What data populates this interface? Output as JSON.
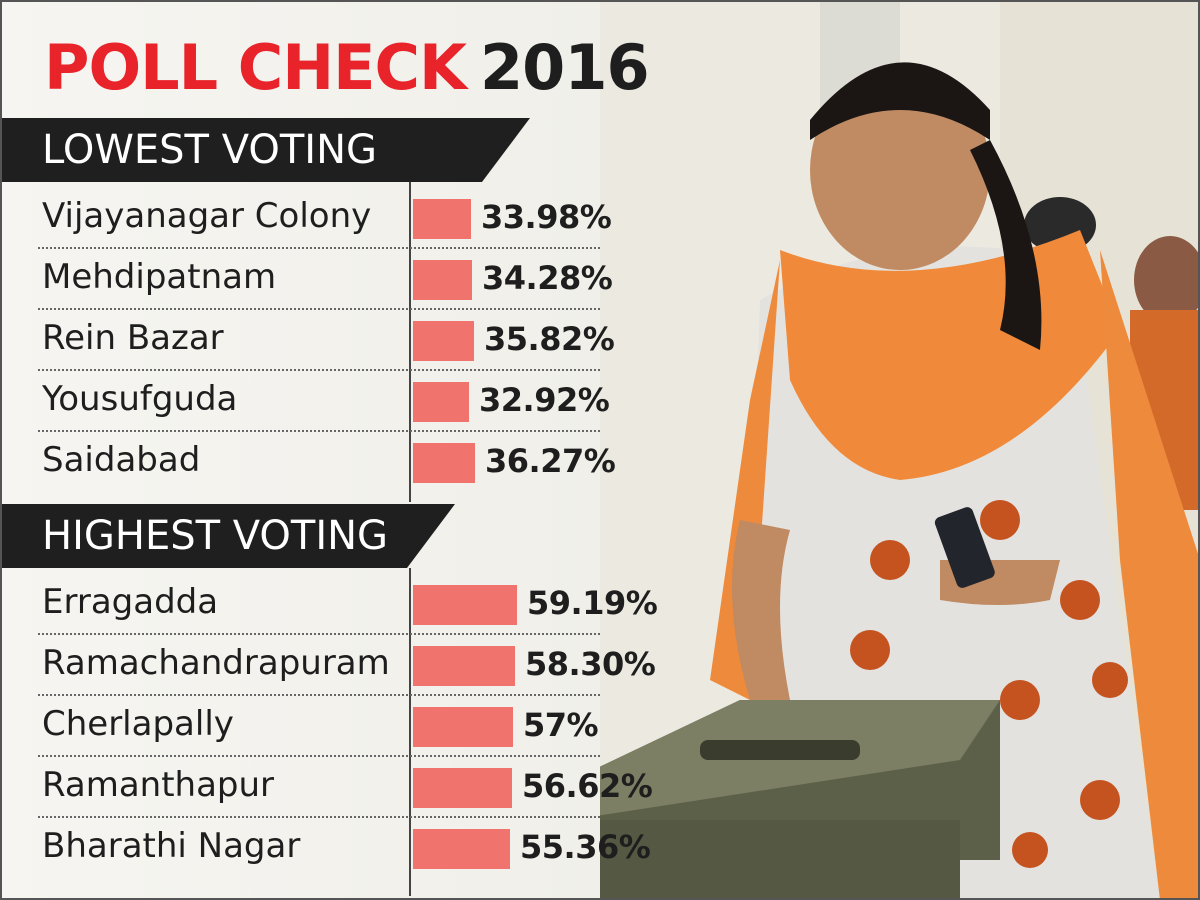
{
  "header": {
    "title_red": "POLL CHECK",
    "title_dark": "2016"
  },
  "chart_data": {
    "type": "bar",
    "groups": [
      {
        "name": "LOWEST VOTING",
        "categories": [
          "Vijayanagar Colony",
          "Mehdipatnam",
          "Rein Bazar",
          "Yousufguda",
          "Saidabad"
        ],
        "values": [
          33.98,
          34.28,
          35.82,
          32.92,
          36.27
        ],
        "labels": [
          "33.98%",
          "34.28%",
          "35.82%",
          "32.92%",
          "36.27%"
        ]
      },
      {
        "name": "HIGHEST VOTING",
        "categories": [
          "Erragadda",
          "Ramachandrapuram",
          "Cherlapally",
          "Ramanthapur",
          "Bharathi Nagar"
        ],
        "values": [
          59.19,
          58.3,
          57,
          56.62,
          55.36
        ],
        "labels": [
          "59.19%",
          "58.30%",
          "57%",
          "56.62%",
          "55.36%"
        ]
      }
    ],
    "unit": "%",
    "orientation": "horizontal",
    "bar_color": "#f0736d"
  },
  "colors": {
    "title_accent": "#e8232a",
    "header_band": "#1f1f1f"
  }
}
